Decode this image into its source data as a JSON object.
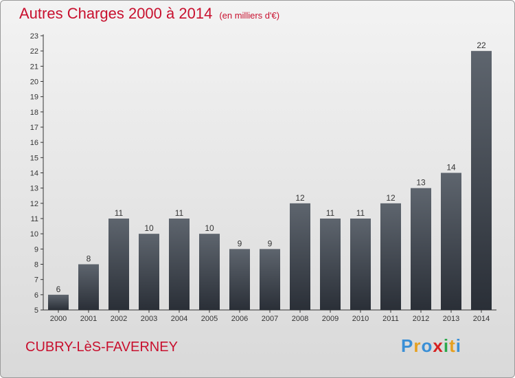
{
  "header": {
    "title": "Autres Charges 2000 à 2014",
    "subtitle": "(en milliers d'€)"
  },
  "footer": {
    "commune": "CUBRY-LèS-FAVERNEY",
    "logo": "Proxiti"
  },
  "colors": {
    "title": "#c8102e",
    "bar_top": "#5e656e",
    "bar_bottom": "#2a2f37",
    "logo_letters": [
      "#3a8fd6",
      "#e6a020",
      "#3a8fd6",
      "#d62020",
      "#2aa84a",
      "#e6a020",
      "#3a8fd6"
    ]
  },
  "chart_data": {
    "type": "bar",
    "title": "Autres Charges 2000 à 2014",
    "subtitle": "(en milliers d'€)",
    "categories": [
      "2000",
      "2001",
      "2002",
      "2003",
      "2004",
      "2005",
      "2006",
      "2007",
      "2008",
      "2009",
      "2010",
      "2011",
      "2012",
      "2013",
      "2014"
    ],
    "values": [
      6,
      8,
      11,
      10,
      11,
      10,
      9,
      9,
      12,
      11,
      11,
      12,
      13,
      14,
      22
    ],
    "ylim": [
      5,
      23
    ],
    "yticks": [
      5,
      6,
      7,
      8,
      9,
      10,
      11,
      12,
      13,
      14,
      15,
      16,
      17,
      18,
      19,
      20,
      21,
      22,
      23
    ],
    "grid": false,
    "legend": "none"
  }
}
